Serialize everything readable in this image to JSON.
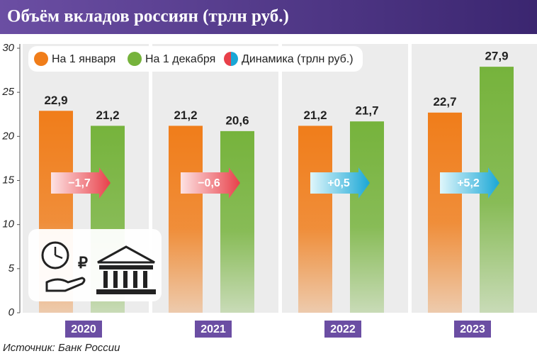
{
  "chart_data": {
    "type": "bar",
    "title": "Объём вкладов россиян (трлн руб.)",
    "categories": [
      "2020",
      "2021",
      "2022",
      "2023"
    ],
    "series": [
      {
        "name": "На 1 января",
        "color": "#f07d1a",
        "values": [
          22.9,
          21.2,
          21.2,
          22.7
        ],
        "value_labels": [
          "22,9",
          "21,2",
          "21,2",
          "22,7"
        ]
      },
      {
        "name": "На 1 декабря",
        "color": "#76b33c",
        "values": [
          21.2,
          20.6,
          21.7,
          27.9
        ],
        "value_labels": [
          "21,2",
          "20,6",
          "21,7",
          "27,9"
        ]
      }
    ],
    "change": {
      "name": "Динамика (трлн руб.)",
      "values": [
        -1.7,
        -0.6,
        0.5,
        5.2
      ],
      "value_labels": [
        "−1,7",
        "−0,6",
        "+0,5",
        "+5,2"
      ]
    },
    "ylim": [
      0,
      30
    ],
    "yticks": [
      0,
      5,
      10,
      15,
      20,
      25,
      30
    ],
    "source": "Источник: Банк России"
  }
}
